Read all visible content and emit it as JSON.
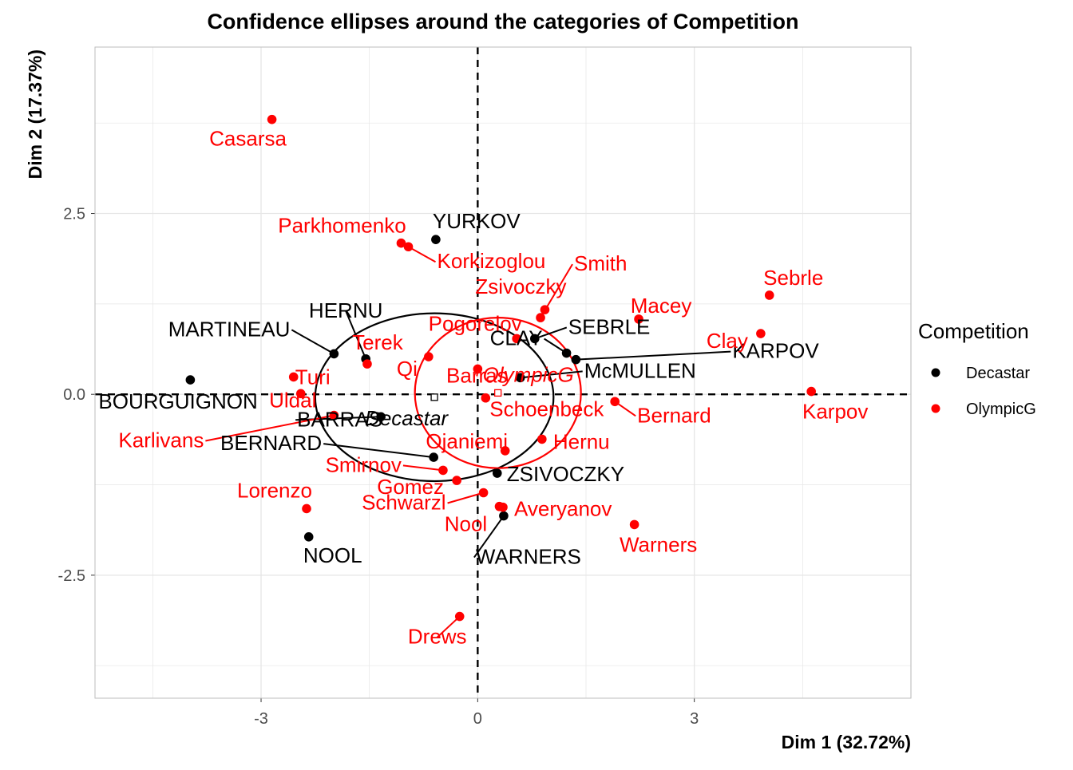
{
  "chart_data": {
    "type": "scatter",
    "title": "Confidence ellipses around the categories of Competition",
    "xlabel": "Dim 1 (32.72%)",
    "ylabel": "Dim 2 (17.37%)",
    "xlim": [
      -5.3,
      6.0
    ],
    "ylim": [
      -4.2,
      4.8
    ],
    "x_ticks": [
      {
        "value": -3,
        "label": "-3"
      },
      {
        "value": 0,
        "label": "0"
      },
      {
        "value": 3,
        "label": "3"
      }
    ],
    "y_ticks": [
      {
        "value": 2.5,
        "label": "2.5"
      },
      {
        "value": 0,
        "label": "0.0"
      },
      {
        "value": -2.5,
        "label": "-2.5"
      }
    ],
    "grid": true,
    "reference_lines": [
      {
        "axis": "x",
        "value": 0,
        "style": "dashed"
      },
      {
        "axis": "y",
        "value": 0,
        "style": "dashed"
      }
    ],
    "legend": {
      "title": "Competition",
      "placement": "right",
      "entries": [
        {
          "name": "Decastar",
          "color": "#000000"
        },
        {
          "name": "OlympicG",
          "color": "#ff0000"
        }
      ]
    },
    "series": [
      {
        "name": "Decastar",
        "color": "#000000",
        "points": [
          {
            "label": "SEBRLE",
            "x": 0.79,
            "y": 0.77
          },
          {
            "label": "CLAY",
            "x": 1.23,
            "y": 0.57
          },
          {
            "label": "KARPOV",
            "x": 1.36,
            "y": 0.48
          },
          {
            "label": "BERNARD",
            "x": -0.61,
            "y": -0.87
          },
          {
            "label": "YURKOV",
            "x": -0.58,
            "y": 2.14
          },
          {
            "label": "WARNERS",
            "x": 0.36,
            "y": -1.68
          },
          {
            "label": "ZSIVOCZKY",
            "x": 0.27,
            "y": -1.09
          },
          {
            "label": "McMULLEN",
            "x": 0.59,
            "y": 0.23
          },
          {
            "label": "MARTINEAU",
            "x": -1.99,
            "y": 0.56
          },
          {
            "label": "HERNU",
            "x": -1.55,
            "y": 0.49
          },
          {
            "label": "BARRAS",
            "x": -1.34,
            "y": -0.31
          },
          {
            "label": "NOOL",
            "x": -2.34,
            "y": -1.97
          },
          {
            "label": "BOURGUIGNON",
            "x": -3.98,
            "y": 0.2
          }
        ]
      },
      {
        "name": "OlympicG",
        "color": "#ff0000",
        "points": [
          {
            "label": "Sebrle",
            "x": 4.04,
            "y": 1.37
          },
          {
            "label": "Clay",
            "x": 3.92,
            "y": 0.84
          },
          {
            "label": "Karpov",
            "x": 4.62,
            "y": 0.04
          },
          {
            "label": "Macey",
            "x": 2.23,
            "y": 1.04
          },
          {
            "label": "Warners",
            "x": 2.17,
            "y": -1.8
          },
          {
            "label": "Zsivoczky",
            "x": 0.93,
            "y": 1.17
          },
          {
            "label": "Hernu",
            "x": 0.89,
            "y": -0.62
          },
          {
            "label": "Nool",
            "x": 0.3,
            "y": -1.55
          },
          {
            "label": "Bernard",
            "x": 1.9,
            "y": -0.1
          },
          {
            "label": "Schwarzl",
            "x": 0.08,
            "y": -1.36
          },
          {
            "label": "Pogorelov",
            "x": 0.54,
            "y": 0.77
          },
          {
            "label": "Schoenbeck",
            "x": 0.11,
            "y": -0.05
          },
          {
            "label": "Barras",
            "x": 0.0,
            "y": 0.35
          },
          {
            "label": "Smith",
            "x": 0.87,
            "y": 1.06
          },
          {
            "label": "Averyanov",
            "x": 0.35,
            "y": -1.56
          },
          {
            "label": "Ojaniemi",
            "x": 0.38,
            "y": -0.78
          },
          {
            "label": "Smirnov",
            "x": -0.48,
            "y": -1.05
          },
          {
            "label": "Qi",
            "x": -0.68,
            "y": 0.52
          },
          {
            "label": "Drews",
            "x": -0.25,
            "y": -3.07
          },
          {
            "label": "Parkhomenko",
            "x": -1.06,
            "y": 2.09
          },
          {
            "label": "Terek",
            "x": -1.53,
            "y": 0.42
          },
          {
            "label": "Gomez",
            "x": -0.29,
            "y": -1.19
          },
          {
            "label": "Turi",
            "x": -2.55,
            "y": 0.24
          },
          {
            "label": "Lorenzo",
            "x": -2.37,
            "y": -1.58
          },
          {
            "label": "Karlivans",
            "x": -1.99,
            "y": -0.29
          },
          {
            "label": "Korkizoglou",
            "x": -0.96,
            "y": 2.04
          },
          {
            "label": "Uldal",
            "x": -2.45,
            "y": 0.01
          },
          {
            "label": "Casarsa",
            "x": -2.85,
            "y": 3.8
          }
        ]
      }
    ],
    "category_centers": [
      {
        "name": "Decastar",
        "x": -0.6,
        "y": -0.04,
        "color": "#000000"
      },
      {
        "name": "OlympicG",
        "x": 0.28,
        "y": 0.02,
        "color": "#ff0000"
      }
    ],
    "ellipses": [
      {
        "name": "Decastar",
        "cx": -0.6,
        "cy": -0.04,
        "rx": 1.65,
        "ry": 1.16,
        "color": "#000000"
      },
      {
        "name": "OlympicG",
        "cx": 0.28,
        "cy": 0.02,
        "rx": 1.15,
        "ry": 1.04,
        "color": "#ff0000"
      }
    ]
  }
}
